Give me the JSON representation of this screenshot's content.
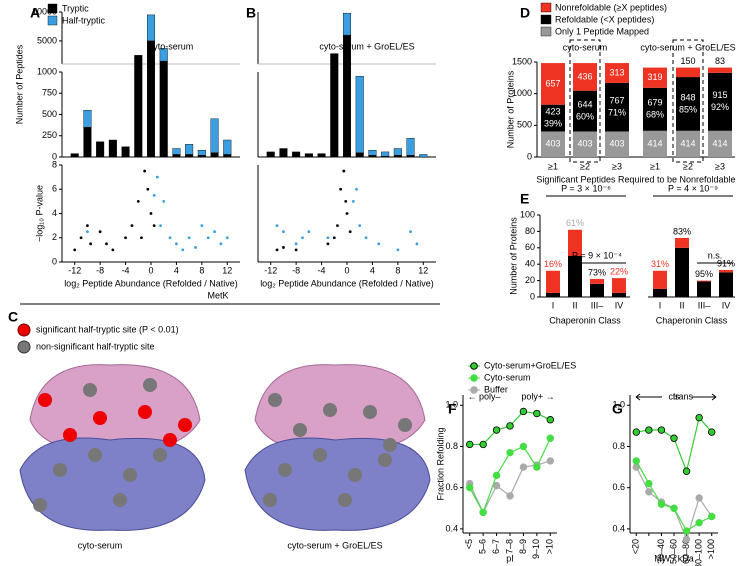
{
  "panel_labels": [
    "A",
    "B",
    "C",
    "D",
    "E",
    "F",
    "G"
  ],
  "panel_c": {
    "title": "MetK",
    "legend": [
      "significant half-tryptic site (P < 0.01)",
      "non-significant half-tryptic site"
    ],
    "captions": [
      "cyto-serum",
      "cyto-serum + GroEL/ES"
    ]
  },
  "chart_data": [
    {
      "type": "histogram",
      "title": "cyto-serum",
      "ylabel": "Number of Peptides",
      "bins": [
        -13,
        -11,
        -9,
        -7,
        -5,
        -3,
        -1,
        1,
        3,
        5,
        7,
        9,
        11,
        13
      ],
      "xlim": [
        -14,
        14
      ],
      "ylim": [
        0,
        10000
      ],
      "ybreak": 1000,
      "yticks": [
        0,
        250,
        500,
        750,
        1000,
        5000,
        10000
      ],
      "series": [
        {
          "name": "Tryptic",
          "color": "#000000",
          "values": [
            40,
            350,
            180,
            200,
            120,
            2500,
            5000,
            1500,
            30,
            30,
            20,
            50,
            30
          ]
        },
        {
          "name": "Half-tryptic",
          "color": "#3b9ee0",
          "values": [
            0,
            200,
            0,
            0,
            0,
            0,
            4500,
            2200,
            70,
            120,
            60,
            400,
            170
          ]
        }
      ]
    },
    {
      "type": "scatter",
      "ylabel": "−log₁₀ P-value",
      "xlabel": "log₂ Peptide Abundance (Refolded / Native)",
      "xlim": [
        -14,
        14
      ],
      "ylim": [
        0,
        8
      ],
      "xticks": [
        -12,
        -8,
        -4,
        0,
        4,
        8,
        12
      ],
      "yticks": [
        0,
        2,
        4,
        6,
        8
      ],
      "series": [
        {
          "color": "#000000",
          "x": [
            -11,
            -10,
            -9.5,
            -12,
            -8,
            -6,
            -3,
            -2,
            -1,
            -0.5,
            0,
            -1.5,
            0.5,
            -7,
            -4
          ],
          "values": [
            2,
            3,
            1.5,
            1,
            2.5,
            1,
            3,
            5,
            7.5,
            6,
            4,
            2,
            3,
            1.5,
            2
          ]
        },
        {
          "color": "#3b9ee0",
          "x": [
            1,
            2,
            1.5,
            3,
            4,
            6,
            8,
            9,
            10,
            11,
            12,
            -10,
            5,
            7,
            0.5
          ],
          "values": [
            7,
            5,
            3,
            2,
            1.5,
            2,
            3,
            2,
            2.5,
            1.5,
            2,
            2.5,
            1,
            1.2,
            5.5
          ]
        }
      ]
    },
    {
      "type": "histogram",
      "title": "cyto-serum + GroEL/ES",
      "bins": [
        -13,
        -11,
        -9,
        -7,
        -5,
        -3,
        -1,
        1,
        3,
        5,
        7,
        9,
        11,
        13
      ],
      "xlim": [
        -14,
        14
      ],
      "ylim": [
        0,
        10000
      ],
      "ybreak": 1000,
      "series": [
        {
          "color": "#000000",
          "values": [
            60,
            100,
            60,
            40,
            40,
            2800,
            6000,
            50,
            20,
            10,
            20,
            20,
            0
          ]
        },
        {
          "color": "#3b9ee0",
          "values": [
            0,
            0,
            0,
            0,
            0,
            0,
            3800,
            900,
            60,
            50,
            80,
            200,
            30
          ]
        }
      ]
    },
    {
      "type": "scatter",
      "xlabel": "log₂ Peptide Abundance (Refolded / Native)",
      "xlim": [
        -14,
        14
      ],
      "ylim": [
        0,
        8
      ],
      "xticks": [
        -12,
        -8,
        -4,
        0,
        4,
        8,
        12
      ],
      "series": [
        {
          "color": "#000000",
          "x": [
            -0.5,
            -1,
            -0.2,
            -1.5,
            0,
            -2,
            -3,
            -8,
            -10,
            -11,
            0.5
          ],
          "values": [
            7.5,
            6,
            5,
            3,
            4,
            2,
            1.5,
            1,
            1.2,
            1,
            2.5
          ]
        },
        {
          "color": "#3b9ee0",
          "x": [
            -11,
            -10,
            -7,
            -6,
            -3,
            1,
            2,
            3,
            5,
            8,
            10,
            11,
            -8,
            1.5
          ],
          "values": [
            3,
            2.5,
            2,
            2.5,
            2,
            5,
            3,
            2,
            1.5,
            1,
            2.5,
            1.5,
            1.5,
            6
          ]
        }
      ]
    },
    {
      "type": "stacked-bar",
      "ylabel": "Number of Proteins",
      "xlabel": "Significant Peptides Required to be Nonrefoldable",
      "group_titles": [
        "cyto-serum",
        "cyto-serum + GroEL/ES"
      ],
      "categories": [
        "≥1",
        "≥2",
        "≥3",
        "≥1",
        "≥2",
        "≥3"
      ],
      "ylim": [
        0,
        1500
      ],
      "yticks": [
        0,
        500,
        1000,
        1500
      ],
      "series": [
        {
          "name": "Only 1 Peptide Mapped",
          "color": "#999999",
          "values": [
            403,
            403,
            403,
            414,
            414,
            414
          ]
        },
        {
          "name": "Refoldable (<X peptides)",
          "color": "#000000",
          "values": [
            423,
            644,
            767,
            679,
            848,
            915
          ]
        },
        {
          "name": "Nonrefoldable (≥X peptides)",
          "color": "#ee3322",
          "values": [
            657,
            436,
            313,
            319,
            150,
            83
          ]
        }
      ],
      "refoldable_percent": {
        "values": [
          39,
          60,
          71,
          68,
          85,
          92
        ],
        "value_labels": [
          "39%",
          "60%",
          "71%",
          "68%",
          "85%",
          "92%"
        ]
      }
    },
    {
      "type": "stacked-bar",
      "ylabel": "Number of Proteins",
      "xlabel": "Chaperonin Class",
      "categories": [
        "I",
        "II",
        "III–",
        "IV"
      ],
      "ylim": [
        0,
        100
      ],
      "yticks": [
        0,
        20,
        40,
        60,
        80,
        100
      ],
      "series": [
        {
          "color": "#000000",
          "values": [
            5,
            50,
            16,
            5
          ]
        },
        {
          "color": "#ee3322",
          "values": [
            27,
            32,
            6,
            18
          ]
        }
      ],
      "percent_labels": {
        "values": [
          16,
          61,
          73,
          22
        ],
        "value_labels": [
          "16%",
          "61%",
          "73%",
          "22%"
        ],
        "colors": [
          "#ee3322",
          "#aaaaaa",
          "#000000",
          "#ee3322"
        ]
      },
      "annotations": [
        "P = 3 × 10⁻⁶",
        "P = 9 × 10⁻⁴"
      ]
    },
    {
      "type": "stacked-bar",
      "xlabel": "Chaperonin Class",
      "categories": [
        "I",
        "II",
        "III–",
        "IV"
      ],
      "ylim": [
        0,
        100
      ],
      "series": [
        {
          "color": "#000000",
          "values": [
            10,
            60,
            19,
            30
          ]
        },
        {
          "color": "#ee3322",
          "values": [
            22,
            12,
            1,
            3
          ]
        }
      ],
      "percent_labels": {
        "values": [
          31,
          83,
          95,
          91
        ],
        "value_labels": [
          "31%",
          "83%",
          "95%",
          "91%"
        ],
        "colors": [
          "#ee3322",
          "#000000",
          "#000000",
          "#000000"
        ]
      },
      "annotations": [
        "P = 4 × 10⁻⁹",
        "n.s."
      ]
    },
    {
      "type": "line",
      "ylabel": "Fraction Refolding",
      "xlabel": "pI",
      "categories": [
        "<5",
        "5–6",
        "6–7",
        "7–8",
        "8–9",
        "9–10",
        ">10"
      ],
      "ylim": [
        0.38,
        1.05
      ],
      "yticks": [
        0.4,
        0.6,
        0.8,
        {
          "value": 1,
          "label": "1.0"
        }
      ],
      "annotations": [
        "← poly–",
        "poly+ →"
      ],
      "series": [
        {
          "name": "Cyto-serum+GroEL/ES",
          "color": "#33cc33",
          "edgecolor": "#000000",
          "values": [
            0.81,
            0.81,
            0.88,
            0.9,
            0.97,
            0.96,
            0.93
          ]
        },
        {
          "name": "Cyto-serum",
          "color": "#44dd44",
          "values": [
            0.6,
            0.48,
            0.66,
            0.77,
            0.8,
            0.7,
            0.84
          ]
        },
        {
          "name": "Buffer",
          "color": "#aaaaaa",
          "values": [
            0.62,
            0.48,
            0.61,
            0.56,
            0.7,
            0.71,
            0.73
          ]
        }
      ]
    },
    {
      "type": "line",
      "xlabel": "MW / kDa",
      "categories": [
        "<20",
        null,
        "30–40",
        "50–60",
        "60–80",
        "80–100",
        ">100"
      ],
      "ylim": [
        0.38,
        1.05
      ],
      "yticks": [
        0.4,
        0.6,
        0.8,
        {
          "value": 1,
          "label": "1.0"
        }
      ],
      "annotations": [
        "cis",
        "trans"
      ],
      "series": [
        {
          "color": "#33cc33",
          "edgecolor": "#000000",
          "values": [
            0.87,
            0.88,
            0.88,
            0.84,
            0.68,
            0.94,
            0.87
          ]
        },
        {
          "color": "#44dd44",
          "values": [
            0.73,
            0.62,
            0.52,
            0.5,
            0.39,
            0.43,
            0.46
          ]
        },
        {
          "color": "#aaaaaa",
          "values": [
            0.7,
            0.58,
            0.53,
            0.5,
            0.35,
            0.55,
            0.46
          ]
        }
      ]
    }
  ]
}
